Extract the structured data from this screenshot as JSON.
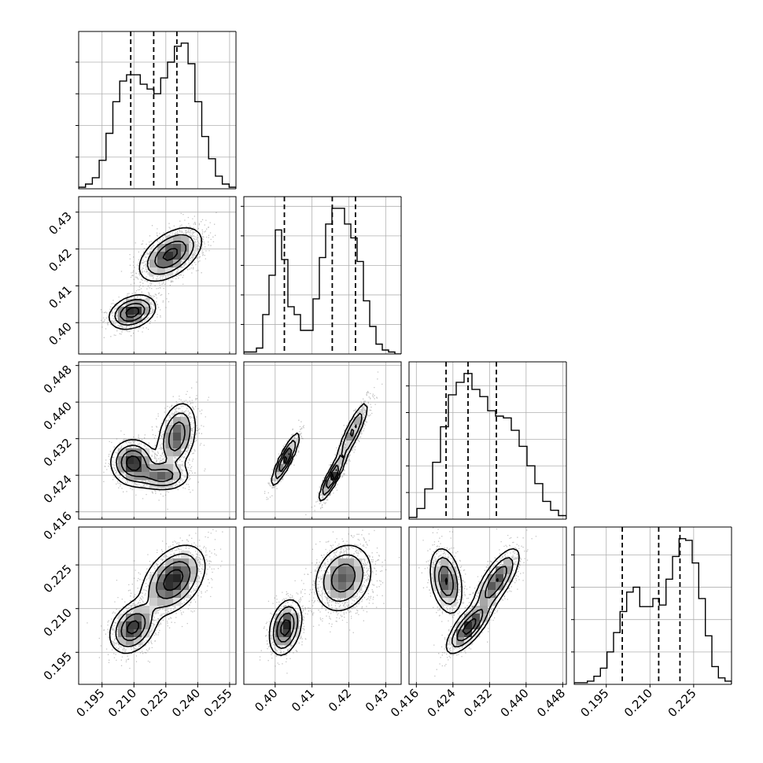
{
  "colors": {
    "ink": "#000000",
    "grid": "#b0b0b0",
    "scatter": "#555555",
    "density_light": "#d9d9d9",
    "density_dark": "#1a1a1a"
  },
  "chart_data": {
    "type": "corner",
    "grid": true,
    "parameters": [
      {
        "range": [
          0.184,
          0.258
        ],
        "ticks": [
          0.195,
          0.21,
          0.225,
          0.24,
          0.255
        ],
        "tick_labels": [
          "0.195",
          "0.210",
          "0.225",
          "0.240",
          "0.255"
        ],
        "quantiles": [
          0.2085,
          0.2193,
          0.2302
        ],
        "histogram": [
          1,
          3,
          7,
          18,
          35,
          55,
          68,
          72,
          72,
          66,
          63,
          60,
          70,
          80,
          90,
          92,
          79,
          55,
          33,
          19,
          8,
          3,
          1
        ]
      },
      {
        "range": [
          0.3915,
          0.4342
        ],
        "ticks": [
          0.4,
          0.41,
          0.42,
          0.43
        ],
        "tick_labels": [
          "0.40",
          "0.41",
          "0.42",
          "0.43"
        ],
        "quantiles": [
          0.4025,
          0.4155,
          0.4218
        ],
        "histogram": [
          1,
          1,
          3,
          20,
          40,
          63,
          48,
          24,
          20,
          12,
          12,
          28,
          49,
          66,
          74,
          74,
          66,
          59,
          47,
          27,
          14,
          5,
          2,
          1,
          0
        ]
      },
      {
        "range": [
          0.4144,
          0.4488
        ],
        "ticks": [
          0.416,
          0.424,
          0.432,
          0.44,
          0.448
        ],
        "tick_labels": [
          "0.416",
          "0.424",
          "0.432",
          "0.440",
          "0.448"
        ],
        "quantiles": [
          0.4225,
          0.4273,
          0.4335
        ],
        "histogram": [
          1,
          6,
          17,
          32,
          52,
          70,
          77,
          82,
          73,
          69,
          61,
          58,
          57,
          50,
          41,
          30,
          20,
          10,
          5,
          2
        ]
      },
      {
        "range": [
          0.184,
          0.238
        ],
        "ticks": [
          0.195,
          0.21,
          0.225
        ],
        "tick_labels": [
          "0.195",
          "0.210",
          "0.225"
        ],
        "quantiles": [
          0.2005,
          0.213,
          0.2203
        ],
        "histogram": [
          1,
          1,
          2,
          5,
          10,
          20,
          32,
          45,
          57,
          60,
          48,
          48,
          53,
          49,
          65,
          79,
          90,
          89,
          75,
          53,
          30,
          11,
          4,
          2
        ]
      }
    ],
    "pairs": [
      {
        "x": 0,
        "y": 1,
        "modes": [
          {
            "cx": 0.2093,
            "cy": 0.4028,
            "sx": 0.0055,
            "sy": 0.0023,
            "rho": 0.3,
            "w": 0.35
          },
          {
            "cx": 0.2272,
            "cy": 0.4185,
            "sx": 0.0075,
            "sy": 0.0037,
            "rho": 0.5,
            "w": 0.65
          }
        ]
      },
      {
        "x": 0,
        "y": 2,
        "modes": [
          {
            "cx": 0.2095,
            "cy": 0.4268,
            "sx": 0.0052,
            "sy": 0.0025,
            "rho": 0.0,
            "w": 0.38
          },
          {
            "cx": 0.2232,
            "cy": 0.4238,
            "sx": 0.0065,
            "sy": 0.0016,
            "rho": 0.0,
            "w": 0.22
          },
          {
            "cx": 0.2302,
            "cy": 0.4325,
            "sx": 0.0046,
            "sy": 0.0038,
            "rho": 0.3,
            "w": 0.4
          }
        ]
      },
      {
        "x": 0,
        "y": 3,
        "modes": [
          {
            "cx": 0.2095,
            "cy": 0.2035,
            "sx": 0.0055,
            "sy": 0.0045,
            "rho": 0.3,
            "w": 0.35
          },
          {
            "cx": 0.2285,
            "cy": 0.2198,
            "sx": 0.0075,
            "sy": 0.006,
            "rho": 0.4,
            "w": 0.65
          }
        ]
      },
      {
        "x": 1,
        "y": 2,
        "modes": [
          {
            "cx": 0.4028,
            "cy": 0.4275,
            "sx": 0.0019,
            "sy": 0.0029,
            "rho": 0.88,
            "w": 0.35
          },
          {
            "cx": 0.4155,
            "cy": 0.4235,
            "sx": 0.0018,
            "sy": 0.0026,
            "rho": 0.88,
            "w": 0.3
          },
          {
            "cx": 0.421,
            "cy": 0.4335,
            "sx": 0.0023,
            "sy": 0.0036,
            "rho": 0.88,
            "w": 0.35
          }
        ]
      },
      {
        "x": 1,
        "y": 3,
        "modes": [
          {
            "cx": 0.4028,
            "cy": 0.2035,
            "sx": 0.0022,
            "sy": 0.0048,
            "rho": 0.3,
            "w": 0.35
          },
          {
            "cx": 0.4185,
            "cy": 0.2205,
            "sx": 0.004,
            "sy": 0.006,
            "rho": 0.2,
            "w": 0.65
          }
        ]
      },
      {
        "x": 2,
        "y": 3,
        "modes": [
          {
            "cx": 0.4225,
            "cy": 0.2195,
            "sx": 0.0018,
            "sy": 0.0058,
            "rho": -0.3,
            "w": 0.35
          },
          {
            "cx": 0.4275,
            "cy": 0.2035,
            "sx": 0.0025,
            "sy": 0.0045,
            "rho": 0.75,
            "w": 0.3
          },
          {
            "cx": 0.4335,
            "cy": 0.2195,
            "sx": 0.0026,
            "sy": 0.0058,
            "rho": 0.75,
            "w": 0.35
          }
        ]
      }
    ]
  }
}
